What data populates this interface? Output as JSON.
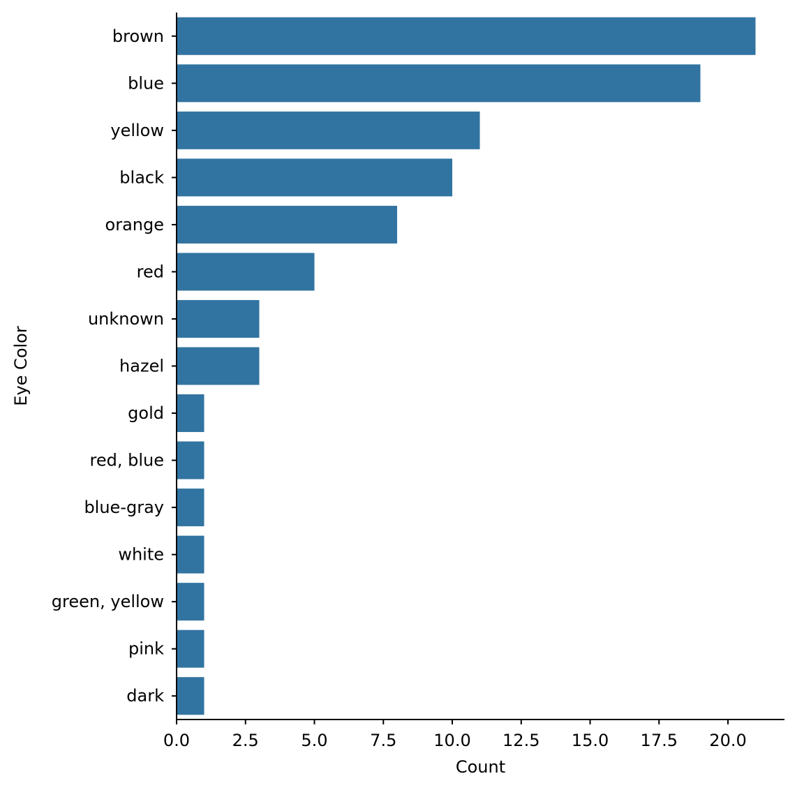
{
  "chart_data": {
    "type": "bar",
    "orientation": "horizontal",
    "title": "",
    "xlabel": "Count",
    "ylabel": "Eye Color",
    "categories": [
      "brown",
      "blue",
      "yellow",
      "black",
      "orange",
      "red",
      "unknown",
      "hazel",
      "gold",
      "red, blue",
      "blue-gray",
      "white",
      "green, yellow",
      "pink",
      "dark"
    ],
    "values": [
      21,
      19,
      11,
      10,
      8,
      5,
      3,
      3,
      1,
      1,
      1,
      1,
      1,
      1,
      1
    ],
    "xlim": [
      0,
      22.05
    ],
    "xticks": [
      0,
      2.5,
      5,
      7.5,
      10,
      12.5,
      15,
      17.5,
      20
    ],
    "xtick_labels": [
      "0.0",
      "2.5",
      "5.0",
      "7.5",
      "10.0",
      "12.5",
      "15.0",
      "17.5",
      "20.0"
    ],
    "bar_color": "#3274a1",
    "grid": false,
    "legend": "none",
    "spines": [
      "left",
      "bottom"
    ]
  }
}
